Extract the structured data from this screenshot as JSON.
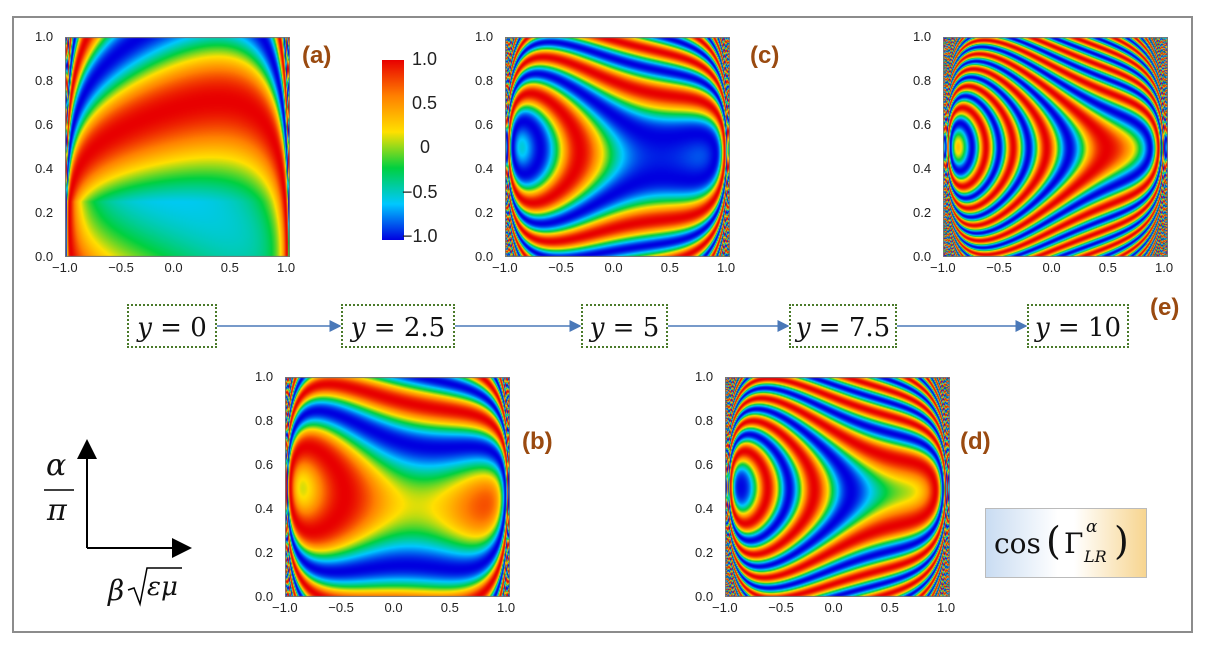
{
  "chart_data": {
    "type": "heatmap",
    "colorbar": {
      "ticks": [
        "1.0",
        "0.5",
        "0",
        "−0.5",
        "−1.0"
      ],
      "range": [
        -1.0,
        1.0
      ],
      "colors": [
        "#0000e0",
        "#00c8ff",
        "#00d040",
        "#ffe000",
        "#ff8000",
        "#e80000"
      ]
    },
    "x_ticks": [
      "−1.0",
      "−0.5",
      "0.0",
      "0.5",
      "1.0"
    ],
    "y_ticks": [
      "1.0",
      "0.8",
      "0.6",
      "0.4",
      "0.2",
      "0.0"
    ],
    "xlim": [
      -1,
      1
    ],
    "ylim": [
      0,
      1
    ],
    "panels": [
      {
        "label": "(a)",
        "y": 0
      },
      {
        "label": "(b)",
        "y": 2.5
      },
      {
        "label": "(c)",
        "y": 5
      },
      {
        "label": "(d)",
        "y": 7.5
      },
      {
        "label": "(e)",
        "y": 10
      }
    ],
    "sequence": [
      "0",
      "2.5",
      "5",
      "7.5",
      "10"
    ],
    "axis_labels": {
      "vertical_num": "α",
      "vertical_den": "π",
      "horizontal_beta": "β",
      "horizontal_root": "εμ"
    },
    "quantity": {
      "func": "cos",
      "symbol": "Γ",
      "sup": "α",
      "sub": "LR"
    }
  }
}
